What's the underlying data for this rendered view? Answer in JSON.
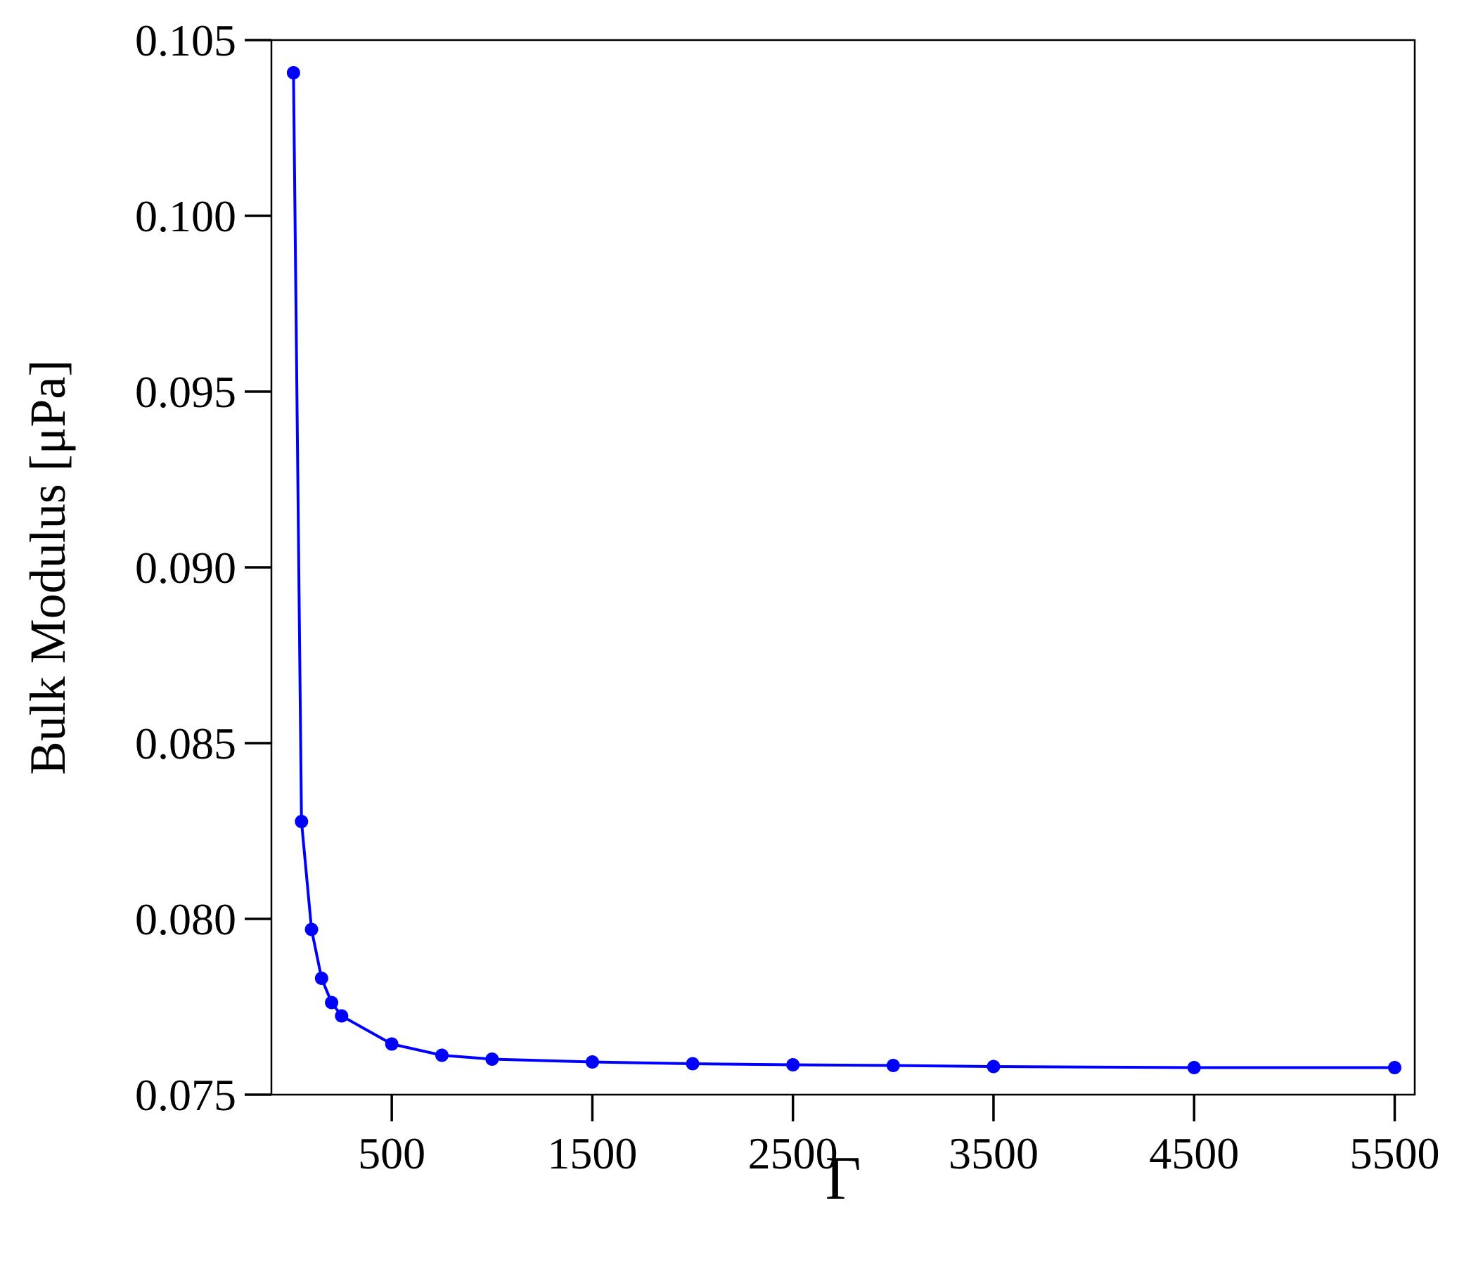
{
  "chart_data": {
    "type": "line",
    "x_label": "Γ",
    "y_label": "Bulk Modulus [μPa]",
    "x": [
      10,
      50,
      100,
      150,
      200,
      250,
      500,
      750,
      1000,
      1500,
      2000,
      2500,
      3000,
      3500,
      4500,
      5500
    ],
    "series": [
      {
        "color": "#0000ff",
        "values": [
          0.10407,
          0.08277,
          0.0797,
          0.07831,
          0.07762,
          0.07724,
          0.07644,
          0.07612,
          0.07601,
          0.07593,
          0.07588,
          0.07585,
          0.07583,
          0.0758,
          0.07577,
          0.07577
        ]
      }
    ],
    "xlim": [
      -100,
      5600
    ],
    "ylim": [
      0.075,
      0.105
    ],
    "xticks": [
      500,
      1500,
      2500,
      3500,
      4500,
      5500
    ],
    "yticks": [
      0.075,
      {
        "value": 0.08,
        "label": "0.080"
      },
      0.085,
      {
        "value": 0.09,
        "label": "0.090"
      },
      0.095,
      {
        "value": 0.1,
        "label": "0.100"
      },
      0.105
    ],
    "markers": true,
    "grid": false
  }
}
